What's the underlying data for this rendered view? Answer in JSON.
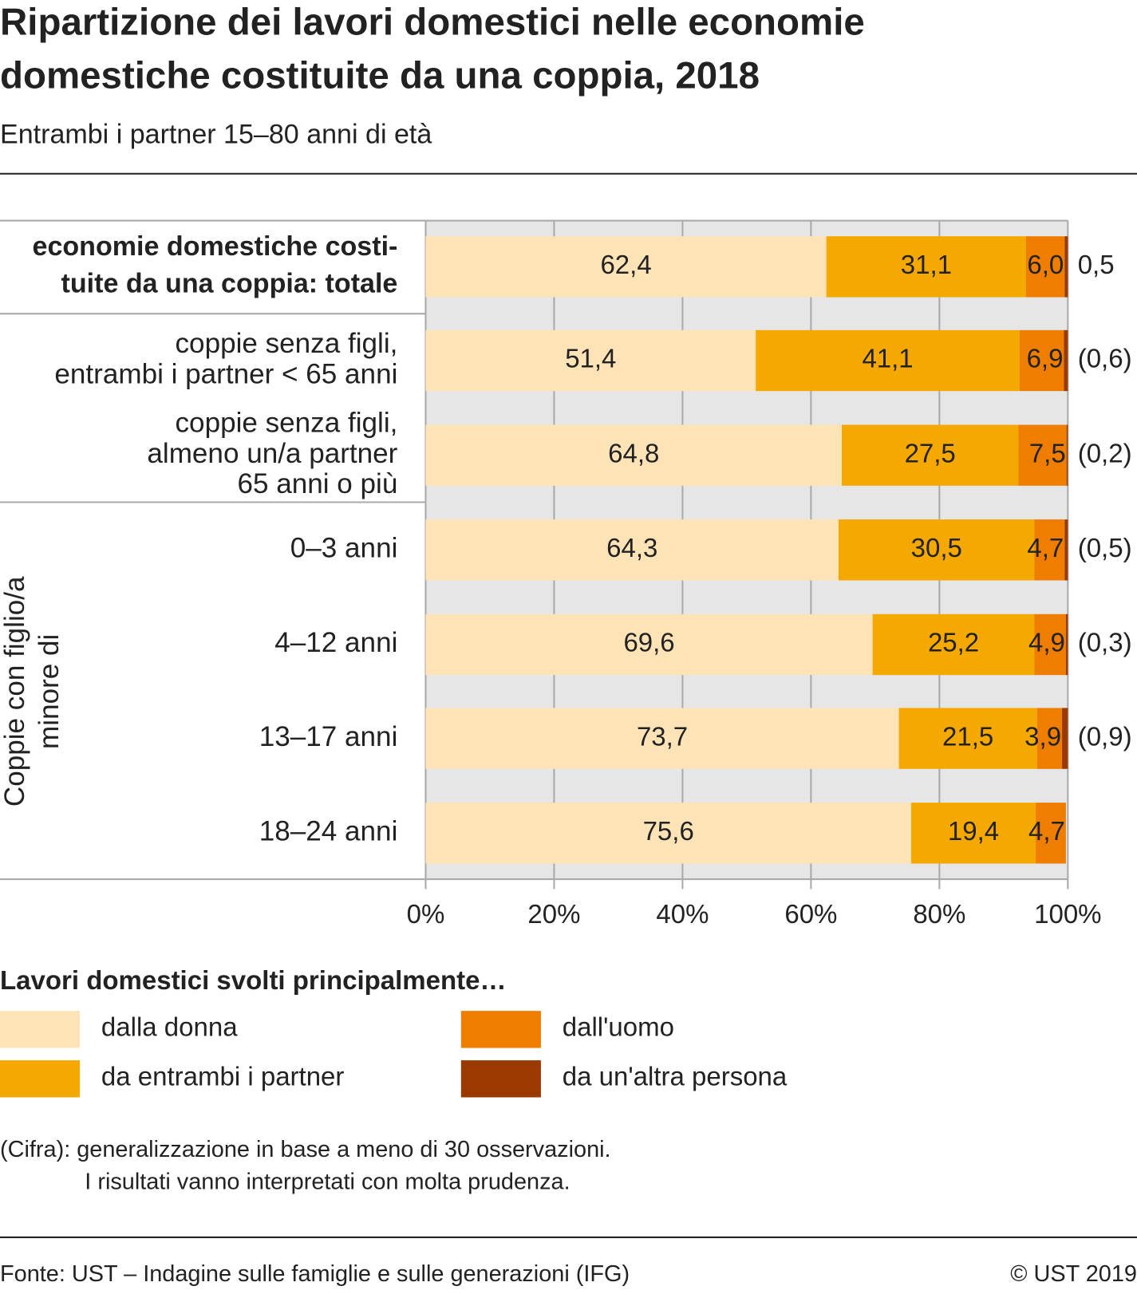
{
  "chart_data": {
    "type": "stacked-bar-horizontal",
    "title": [
      "Ripartizione dei lavori domestici nelle economie",
      "domestiche costituite da una coppia, 2018"
    ],
    "subtitle": "Entrambi i partner 15–80 anni di età",
    "categories": [
      [
        "economie domestiche costi-",
        "tuite da una coppia: totale"
      ],
      [
        "coppie senza figli,",
        "entrambi i partner < 65 anni"
      ],
      [
        "coppie senza figli,",
        "almeno un/a partner",
        "65 anni o più"
      ],
      [
        "0–3 anni"
      ],
      [
        "4–12 anni"
      ],
      [
        "13–17 anni"
      ],
      [
        "18–24 anni"
      ]
    ],
    "group_label": [
      "Coppie con figlio/a",
      "minore di"
    ],
    "series": [
      {
        "name": "dalla donna",
        "color": "#fee3b6",
        "values": [
          62.4,
          51.4,
          64.8,
          64.3,
          69.6,
          73.7,
          75.6
        ],
        "value_labels": [
          "62,4",
          "51,4",
          "64,8",
          "64,3",
          "69,6",
          "73,7",
          "75,6"
        ]
      },
      {
        "name": "da entrambi i partner",
        "color": "#f5a800",
        "values": [
          31.1,
          41.1,
          27.5,
          30.5,
          25.2,
          21.5,
          19.4
        ],
        "value_labels": [
          "31,1",
          "41,1",
          "27,5",
          "30,5",
          "25,2",
          "21,5",
          "19,4"
        ]
      },
      {
        "name": "dall'uomo",
        "color": "#ee7d00",
        "values": [
          6.0,
          6.9,
          7.5,
          4.7,
          4.9,
          3.9,
          4.7
        ],
        "value_labels": [
          "6,0",
          "6,9",
          "7,5",
          "4,7",
          "4,9",
          "3,9",
          "4,7"
        ]
      },
      {
        "name": "da un'altra persona",
        "color": "#9b3a00",
        "values": [
          0.5,
          0.6,
          0.2,
          0.5,
          0.3,
          0.9,
          null
        ],
        "value_labels": [
          "0,5",
          "(0,6)",
          "(0,2)",
          "(0,5)",
          "(0,3)",
          "(0,9)",
          null
        ]
      }
    ],
    "xlim": [
      0,
      100
    ],
    "xticks": [
      {
        "value": 0,
        "label": "0%"
      },
      {
        "value": 20,
        "label": "20%"
      },
      {
        "value": 40,
        "label": "40%"
      },
      {
        "value": 60,
        "label": "60%"
      },
      {
        "value": 80,
        "label": "80%"
      },
      {
        "value": 100,
        "label": "100%"
      }
    ],
    "grid": true,
    "legend_title": "Lavori domestici svolti principalmente…",
    "footnote": [
      "(Cifra): generalizzazione in base a meno di 30 osservazioni.",
      "I risultati vanno interpretati con molta prudenza."
    ],
    "source": "Fonte: UST – Indagine sulle famiglie e sulle generazioni (IFG)",
    "copyright": "© UST 2019"
  }
}
